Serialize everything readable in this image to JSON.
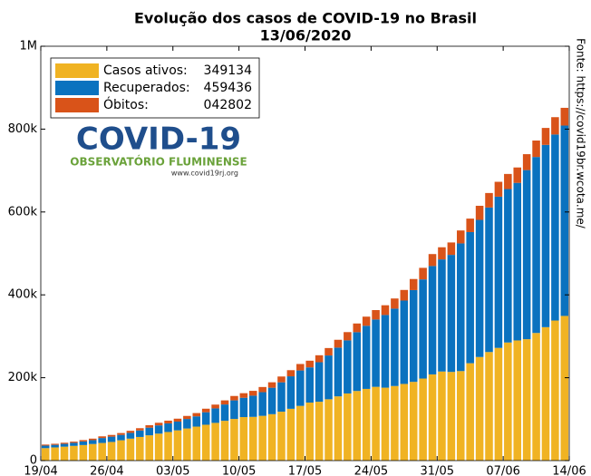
{
  "chart_data": {
    "type": "stacked_bar",
    "title": "Evolução dos casos de COVID-19 no Brasil",
    "subtitle": "13/06/2020",
    "source": "Fonte: https://covid19br.wcota.me/",
    "logo": {
      "title": "COVID-19",
      "subtitle": "OBSERVATÓRIO FLUMINENSE",
      "url": "www.covid19rj.org"
    },
    "legend_values": [
      "349134",
      "459436",
      "042802"
    ],
    "x": [
      0,
      1,
      2,
      3,
      4,
      5,
      6,
      7,
      8,
      9,
      10,
      11,
      12,
      13,
      14,
      15,
      16,
      17,
      18,
      19,
      20,
      21,
      22,
      23,
      24,
      25,
      26,
      27,
      28,
      29,
      30,
      31,
      32,
      33,
      34,
      35,
      36,
      37,
      38,
      39,
      40,
      41,
      42,
      43,
      44,
      45,
      46,
      47,
      48,
      49,
      50,
      51,
      52,
      53,
      54,
      55
    ],
    "xlim": [
      0,
      56
    ],
    "xticks": [
      {
        "value": 0,
        "label": "19/04"
      },
      {
        "value": 7,
        "label": "26/04"
      },
      {
        "value": 14,
        "label": "03/05"
      },
      {
        "value": 21,
        "label": "10/05"
      },
      {
        "value": 28,
        "label": "17/05"
      },
      {
        "value": 35,
        "label": "24/05"
      },
      {
        "value": 42,
        "label": "31/05"
      },
      {
        "value": 49,
        "label": "07/06"
      },
      {
        "value": 56,
        "label": "14/06"
      }
    ],
    "ylim": [
      0,
      1000000
    ],
    "yticks": [
      0,
      {
        "value": 200000,
        "label": "200k"
      },
      {
        "value": 400000,
        "label": "400k"
      },
      {
        "value": 600000,
        "label": "600k"
      },
      {
        "value": 800000,
        "label": "800k"
      },
      {
        "value": 1000000,
        "label": "1M"
      }
    ],
    "series": [
      {
        "name": "Casos ativos:",
        "color": "#f0b323",
        "values": [
          30000,
          31800,
          33600,
          35500,
          37500,
          40000,
          42500,
          45000,
          49000,
          53000,
          57000,
          61000,
          65000,
          69000,
          73000,
          77500,
          82000,
          86500,
          91000,
          96000,
          100500,
          105000,
          105500,
          108000,
          112000,
          118000,
          125000,
          132000,
          140000,
          142000,
          148000,
          155000,
          162000,
          168000,
          173000,
          178000,
          176000,
          180000,
          185000,
          190000,
          198000,
          208000,
          215000,
          214000,
          216000,
          235000,
          250000,
          262000,
          272000,
          285000,
          290000,
          293000,
          308000,
          322000,
          338000,
          349134
        ]
      },
      {
        "name": "Recuperados:",
        "color": "#0a72bf",
        "values": [
          6192,
          6194,
          6738,
          7351,
          8679,
          9291,
          11952,
          12683,
          12958,
          13869,
          15696,
          18479,
          19970,
          20646,
          21122,
          22959,
          24794,
          30182,
          34960,
          39431,
          44812,
          46576,
          51178,
          57128,
          63825,
          70925,
          78406,
          85509,
          84962,
          95367,
          105657,
          117720,
          128136,
          141907,
          152409,
          162545,
          175425,
          186710,
          201223,
          221484,
          239288,
          261606,
          270535,
          282510,
          308184,
          316468,
          330920,
          348745,
          364916,
          370303,
          380278,
          408097,
          424736,
          439909,
          448982,
          459436
        ]
      },
      {
        "name": "Óbitos:",
        "color": "#d95319",
        "values": [
          2462,
          2587,
          2741,
          2906,
          3313,
          3704,
          4057,
          4205,
          4543,
          5017,
          5466,
          5901,
          6329,
          6750,
          7025,
          7321,
          7921,
          8536,
          9146,
          9897,
          10627,
          11123,
          11653,
          12461,
          13149,
          13993,
          14817,
          15633,
          16118,
          16853,
          17971,
          18859,
          19951,
          20983,
          21989,
          22666,
          23473,
          24512,
          25598,
          26754,
          27878,
          28834,
          29314,
          29937,
          31199,
          32548,
          34021,
          35026,
          35930,
          36455,
          37134,
          38406,
          39680,
          40919,
          41828,
          42802
        ]
      }
    ]
  }
}
